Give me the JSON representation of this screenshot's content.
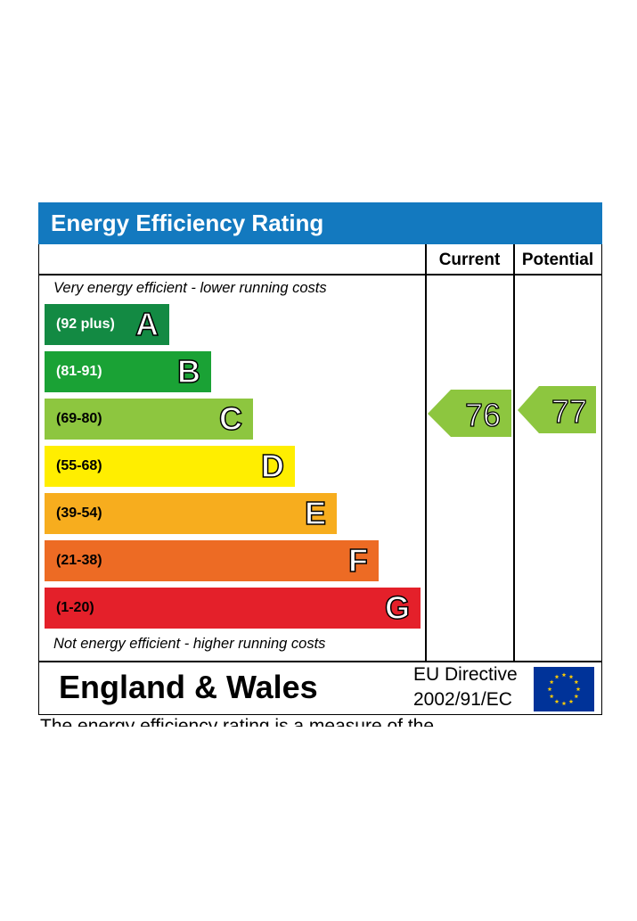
{
  "chart_data": {
    "type": "table",
    "title": "Energy Efficiency Rating",
    "columns": [
      "Current",
      "Potential"
    ],
    "top_note": "Very energy efficient - lower running costs",
    "bottom_note": "Not energy efficient - higher running costs",
    "bands": [
      {
        "range": "(92 plus)",
        "letter": "A",
        "color": "#138a43",
        "range_color": "#ffffff"
      },
      {
        "range": "(81-91)",
        "letter": "B",
        "color": "#1aa235",
        "range_color": "#ffffff"
      },
      {
        "range": "(69-80)",
        "letter": "C",
        "color": "#8dc63f",
        "range_color": "#000000"
      },
      {
        "range": "(55-68)",
        "letter": "D",
        "color": "#ffee00",
        "range_color": "#000000"
      },
      {
        "range": "(39-54)",
        "letter": "E",
        "color": "#f7ad1e",
        "range_color": "#000000"
      },
      {
        "range": "(21-38)",
        "letter": "F",
        "color": "#ed6b24",
        "range_color": "#000000"
      },
      {
        "range": "(1-20)",
        "letter": "G",
        "color": "#e4202a",
        "range_color": "#000000"
      }
    ],
    "current": {
      "value": 76,
      "band": "C",
      "color": "#8dc63f"
    },
    "potential": {
      "value": 77,
      "band": "C",
      "color": "#8dc63f"
    }
  },
  "footer": {
    "region": "England & Wales",
    "directive_line1": "EU Directive",
    "directive_line2": "2002/91/EC",
    "flag_icon": "eu-flag-icon",
    "flag_color": "#003399",
    "star_color": "#ffcc00"
  },
  "cutoff_text": "The energy efficiency rating is a measure of the"
}
